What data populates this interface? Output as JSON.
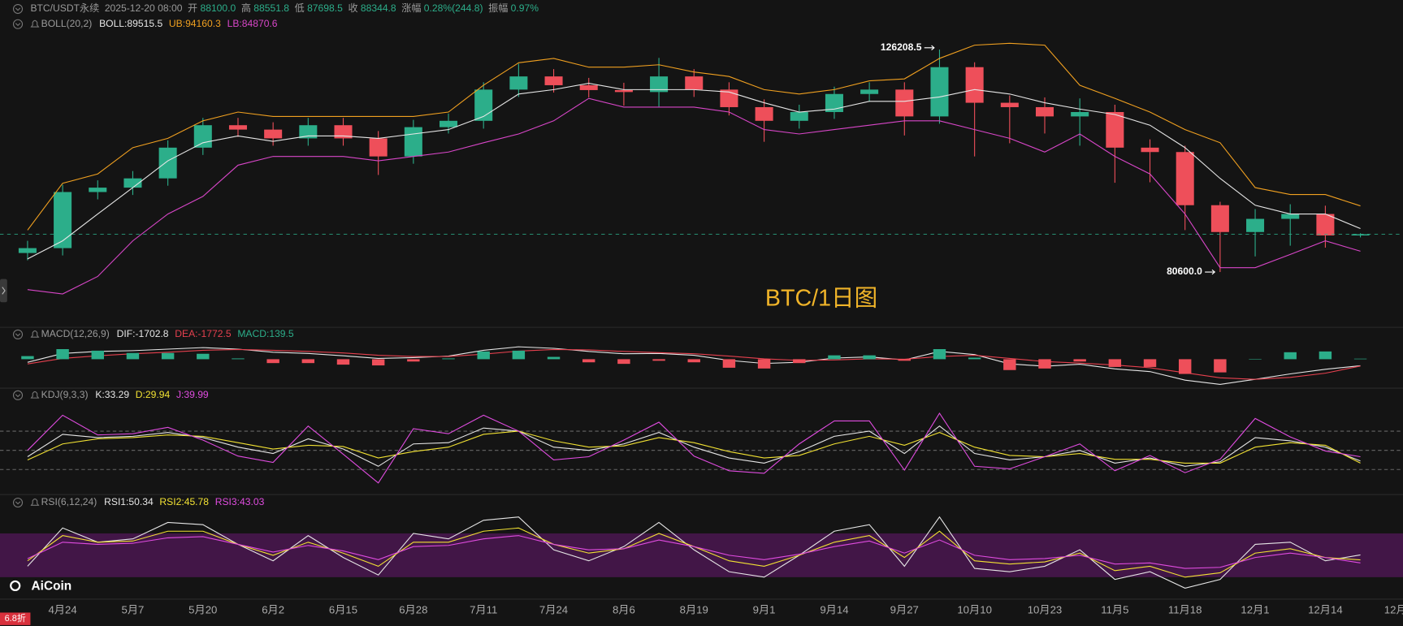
{
  "header": {
    "symbol": "BTC/USDT永续",
    "time": "2025-12-20 08:00",
    "fields": [
      {
        "label": "开",
        "value": "88100.0"
      },
      {
        "label": "高",
        "value": "88551.8"
      },
      {
        "label": "低",
        "value": "87698.5"
      },
      {
        "label": "收",
        "value": "88344.8"
      },
      {
        "label": "涨幅",
        "value": "0.28%(244.8)"
      },
      {
        "label": "振幅",
        "value": "0.97%"
      }
    ]
  },
  "watermark": "BTC/1日图",
  "logo": "AiCoin",
  "badge": "6.8折",
  "chart_data": [
    {
      "type": "candlestick",
      "title": "BOLL(20,2)",
      "categories": [
        null,
        "4月24",
        null,
        "5月7",
        null,
        "5月20",
        null,
        "6月2",
        null,
        "6月15",
        null,
        "6月28",
        null,
        "7月11",
        null,
        "7月24",
        null,
        "8月6",
        null,
        "8月19",
        null,
        "9月1",
        null,
        "9月14",
        null,
        "9月27",
        null,
        "10月10",
        null,
        "10月23",
        null,
        "11月5",
        null,
        "11月18",
        null,
        "12月1",
        null,
        "12月14",
        null,
        "12月"
      ],
      "open": [
        84500,
        85500,
        97000,
        97900,
        99800,
        106100,
        110700,
        109800,
        108000,
        110700,
        108000,
        104300,
        110300,
        111600,
        118000,
        120700,
        118900,
        117900,
        117500,
        120700,
        118000,
        114400,
        111600,
        113400,
        117100,
        118000,
        112500,
        122600,
        115300,
        114400,
        112500,
        113400,
        106100,
        105200,
        94300,
        88800,
        91500,
        92500,
        88100,
        null
      ],
      "high": [
        87000,
        98500,
        99400,
        101300,
        107600,
        112200,
        112200,
        111300,
        112200,
        112200,
        109500,
        111800,
        113100,
        119500,
        123300,
        122200,
        120400,
        119400,
        124500,
        122200,
        119500,
        116000,
        114900,
        118600,
        119500,
        119500,
        126208.5,
        123600,
        116800,
        116400,
        116200,
        114900,
        107800,
        106500,
        95000,
        93500,
        94500,
        94200,
        88551.8,
        null
      ],
      "low": [
        83000,
        84000,
        95500,
        96400,
        98300,
        104600,
        108300,
        106500,
        106500,
        106500,
        100500,
        102800,
        109000,
        110000,
        116500,
        117400,
        116400,
        114700,
        114500,
        116500,
        112700,
        107300,
        110000,
        112000,
        115600,
        108600,
        111000,
        104300,
        107000,
        109000,
        106500,
        98900,
        99000,
        89200,
        80600,
        83800,
        86000,
        85600,
        87698.5,
        null
      ],
      "close": [
        85500,
        97000,
        97900,
        99800,
        106100,
        110700,
        109800,
        108000,
        110700,
        108000,
        104300,
        110300,
        111600,
        118000,
        120700,
        118900,
        117900,
        117500,
        120700,
        118000,
        114400,
        111600,
        113400,
        117100,
        118000,
        112500,
        122600,
        115300,
        114400,
        112500,
        113400,
        106100,
        105200,
        94300,
        88800,
        91500,
        92500,
        88100,
        88344.8,
        null
      ],
      "up_color": "#2cae8a",
      "down_color": "#ee4f5a",
      "ylim": [
        70000,
        136000
      ],
      "annotations": [
        "126208.5",
        "80600.0"
      ],
      "series": [
        {
          "name": "BOLL:89515.5",
          "color": "#e6e6e6",
          "values": [
            83300,
            87000,
            92500,
            97900,
            103400,
            107100,
            108500,
            107400,
            108500,
            108500,
            108000,
            108900,
            109800,
            112500,
            117100,
            118000,
            119300,
            118000,
            118000,
            118000,
            117500,
            115300,
            113400,
            114000,
            115600,
            115600,
            116500,
            118000,
            117100,
            115300,
            114000,
            112900,
            110700,
            106100,
            99800,
            94300,
            92500,
            92500,
            89515.5,
            null
          ]
        },
        {
          "name": "UB:94160.3",
          "color": "#f0a020",
          "values": [
            89200,
            98800,
            100700,
            106100,
            108000,
            111600,
            113400,
            112500,
            112500,
            112500,
            112500,
            112500,
            113400,
            118900,
            123500,
            124400,
            122600,
            122600,
            123100,
            121600,
            120700,
            118000,
            117100,
            118000,
            119800,
            120200,
            124400,
            127100,
            127500,
            127100,
            118900,
            116200,
            113400,
            109800,
            107100,
            97900,
            96500,
            96500,
            94160.3,
            null
          ]
        },
        {
          "name": "LB:84870.6",
          "color": "#d846c8",
          "values": [
            77000,
            76100,
            79700,
            87000,
            92500,
            96100,
            102500,
            104300,
            104300,
            104300,
            103400,
            104300,
            105200,
            107100,
            108900,
            111600,
            116200,
            114400,
            114400,
            114400,
            113400,
            109800,
            108900,
            109800,
            110700,
            111600,
            111600,
            109800,
            108000,
            105200,
            108900,
            104300,
            100700,
            92500,
            81500,
            81500,
            84200,
            87000,
            84870.6,
            null
          ]
        }
      ]
    },
    {
      "type": "macd",
      "title": "MACD(12,26,9)",
      "ylim": [
        -7000,
        5000
      ],
      "up_color": "#2cae8a",
      "down_color": "#ee4f5a",
      "series": [
        {
          "name": "DIF:-1702.8",
          "color": "#e6e6e6",
          "values": [
            -800,
            1500,
            2000,
            2200,
            2600,
            3000,
            2600,
            1800,
            1500,
            900,
            200,
            400,
            800,
            2300,
            3200,
            2800,
            2000,
            1400,
            1500,
            1000,
            -300,
            -1100,
            -800,
            300,
            600,
            -200,
            2000,
            1200,
            -1200,
            -1800,
            -1300,
            -2500,
            -3200,
            -5400,
            -6500,
            -5200,
            -3800,
            -2600,
            -1702.8,
            null
          ]
        },
        {
          "name": "DEA:-1772.5",
          "color": "#e5404e",
          "values": [
            -1200,
            200,
            900,
            1400,
            1800,
            2300,
            2500,
            2300,
            2000,
            1600,
            1000,
            700,
            700,
            1300,
            2100,
            2500,
            2400,
            2000,
            1700,
            1400,
            800,
            100,
            -300,
            -200,
            100,
            0,
            700,
            1000,
            200,
            -600,
            -1000,
            -1500,
            -2200,
            -3500,
            -4800,
            -5200,
            -4700,
            -3600,
            -1772.5,
            null
          ]
        },
        {
          "name": "MACD:139.5",
          "color": "#2cae8a",
          "kind": "bar",
          "values": [
            800,
            2600,
            2200,
            1600,
            1600,
            1400,
            200,
            -1000,
            -1000,
            -1400,
            -1600,
            -600,
            200,
            2000,
            2200,
            600,
            -800,
            -1200,
            -400,
            -800,
            -2200,
            -2400,
            -1000,
            1000,
            1000,
            -400,
            2600,
            400,
            -2800,
            -2400,
            -600,
            -2000,
            -2000,
            -3800,
            -3400,
            0,
            1800,
            2000,
            139.5,
            null
          ]
        }
      ]
    },
    {
      "type": "line",
      "title": "KDJ(9,3,3)",
      "ylim": [
        -15,
        118
      ],
      "guides": [
        20,
        50,
        80
      ],
      "series": [
        {
          "name": "K:33.29",
          "color": "#e6e6e6",
          "values": [
            40,
            75,
            70,
            72,
            78,
            70,
            55,
            45,
            68,
            52,
            25,
            60,
            62,
            85,
            80,
            55,
            50,
            60,
            78,
            55,
            38,
            30,
            48,
            72,
            80,
            45,
            88,
            45,
            35,
            40,
            50,
            30,
            38,
            25,
            32,
            70,
            65,
            55,
            33.29,
            null
          ]
        },
        {
          "name": "D:29.94",
          "color": "#f2e233",
          "values": [
            35,
            60,
            68,
            70,
            74,
            72,
            62,
            52,
            58,
            56,
            38,
            48,
            55,
            75,
            80,
            65,
            55,
            57,
            70,
            62,
            48,
            38,
            42,
            60,
            72,
            58,
            78,
            55,
            42,
            40,
            45,
            36,
            36,
            30,
            30,
            55,
            62,
            58,
            29.94,
            null
          ]
        },
        {
          "name": "J:39.99",
          "color": "#e04ce0",
          "values": [
            50,
            105,
            74,
            76,
            86,
            66,
            41,
            31,
            88,
            44,
            -1,
            84,
            76,
            105,
            80,
            35,
            40,
            66,
            94,
            41,
            18,
            14,
            60,
            96,
            96,
            19,
            108,
            25,
            21,
            40,
            60,
            18,
            42,
            15,
            36,
            100,
            71,
            49,
            39.99,
            null
          ]
        }
      ]
    },
    {
      "type": "line",
      "title": "RSI(6,12,24)",
      "ylim": [
        14,
        90
      ],
      "band": [
        30,
        70
      ],
      "series": [
        {
          "name": "RSI1:50.34",
          "color": "#e6e6e6",
          "values": [
            40,
            75,
            62,
            65,
            80,
            78,
            60,
            45,
            68,
            48,
            32,
            70,
            65,
            82,
            85,
            55,
            45,
            58,
            80,
            55,
            35,
            30,
            50,
            72,
            78,
            40,
            85,
            38,
            35,
            40,
            55,
            28,
            35,
            20,
            28,
            60,
            62,
            45,
            50.34,
            null
          ]
        },
        {
          "name": "RSI2:45.78",
          "color": "#f2e233",
          "values": [
            45,
            68,
            62,
            63,
            72,
            72,
            60,
            50,
            62,
            52,
            40,
            62,
            62,
            72,
            75,
            60,
            52,
            56,
            70,
            58,
            45,
            40,
            50,
            62,
            68,
            48,
            72,
            45,
            42,
            44,
            52,
            36,
            40,
            30,
            34,
            52,
            56,
            48,
            45.78,
            null
          ]
        },
        {
          "name": "RSI3:43.03",
          "color": "#e04ce0",
          "values": [
            47,
            62,
            60,
            61,
            66,
            67,
            60,
            53,
            59,
            54,
            46,
            58,
            59,
            65,
            68,
            60,
            55,
            56,
            64,
            58,
            50,
            46,
            51,
            58,
            63,
            52,
            64,
            50,
            46,
            47,
            50,
            42,
            43,
            38,
            39,
            48,
            52,
            48,
            43.03,
            null
          ]
        }
      ]
    }
  ]
}
